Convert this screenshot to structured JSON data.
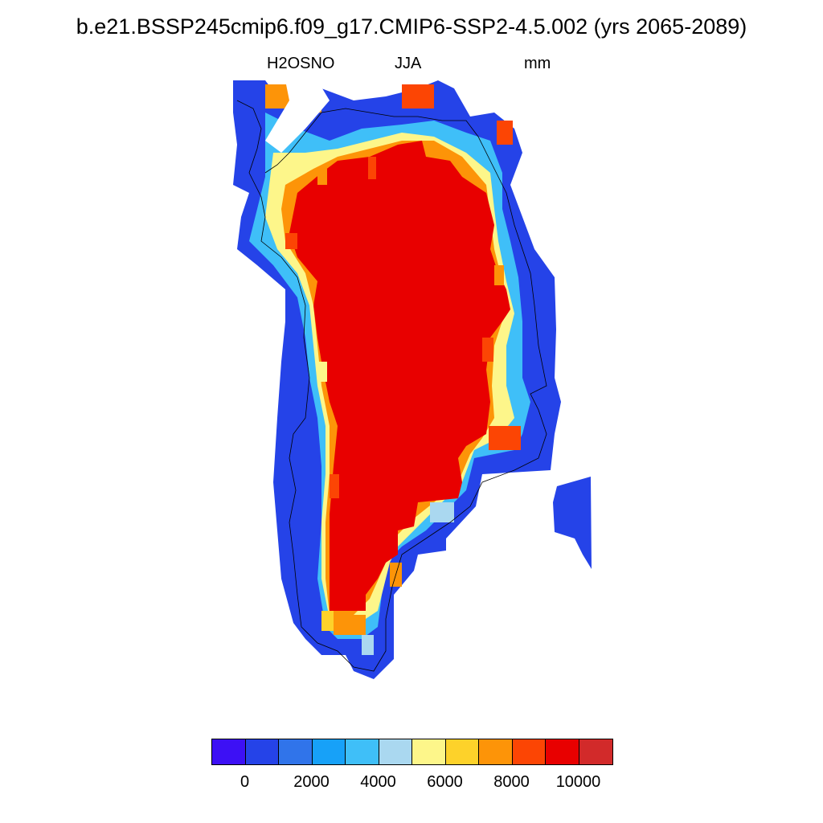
{
  "title": "b.e21.BSSP245cmip6.f09_g17.CMIP6-SSP2-4.5.002 (yrs 2065-2089)",
  "variable": "H2OSNO",
  "season": "JJA",
  "units": "mm",
  "colorbar": {
    "colors": [
      "#3d10f5",
      "#2543e8",
      "#3074ea",
      "#17a1f8",
      "#3fbff8",
      "#aad8f0",
      "#fdf68a",
      "#fdd22a",
      "#fd9408",
      "#fc4504",
      "#e80000",
      "#d22a2a"
    ],
    "tick_labels": [
      "0",
      "2000",
      "4000",
      "6000",
      "8000",
      "10000"
    ]
  }
}
